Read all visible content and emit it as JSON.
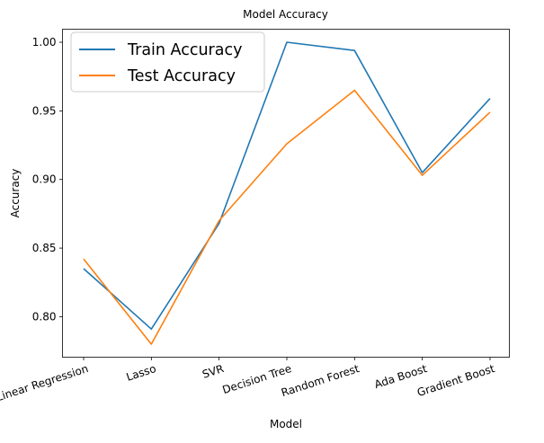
{
  "chart_data": {
    "type": "line",
    "title": "Model Accuracy",
    "xlabel": "Model",
    "ylabel": "Accuracy",
    "categories": [
      "Linear Regression",
      "Lasso",
      "SVR",
      "Decision Tree",
      "Random Forest",
      "Ada Boost",
      "Gradient Boost"
    ],
    "series": [
      {
        "name": "Train Accuracy",
        "color": "#1f77b4",
        "values": [
          0.835,
          0.791,
          0.868,
          1.0,
          0.994,
          0.905,
          0.959
        ]
      },
      {
        "name": "Test Accuracy",
        "color": "#ff7f0e",
        "values": [
          0.842,
          0.78,
          0.87,
          0.926,
          0.965,
          0.903,
          0.949
        ]
      }
    ],
    "yticks": [
      "0.80",
      "0.85",
      "0.90",
      "0.95",
      "1.00"
    ],
    "ylim": [
      0.7705,
      1.0095
    ],
    "grid": false,
    "legend_position": "top-left"
  }
}
